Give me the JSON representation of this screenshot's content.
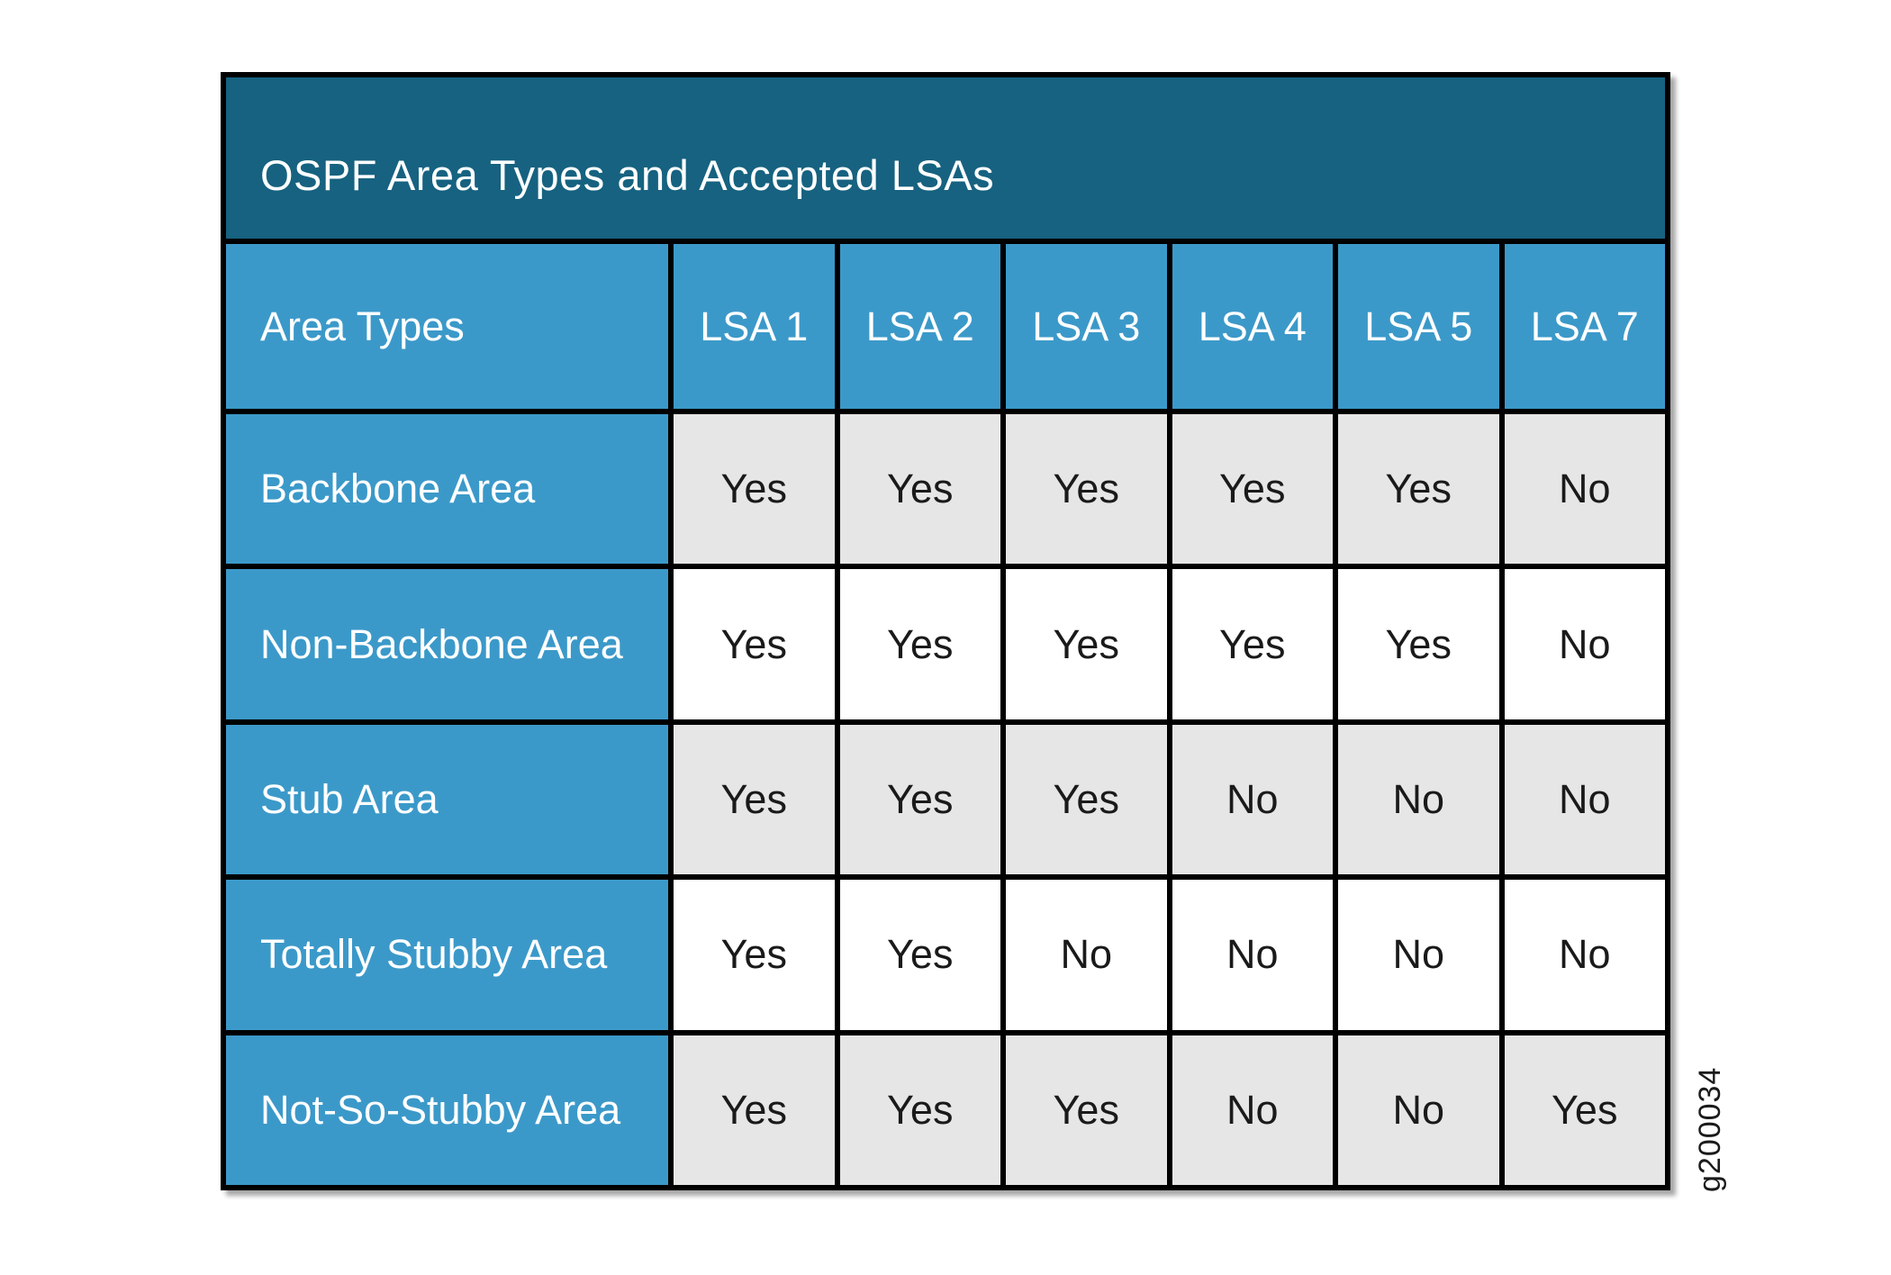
{
  "chart_data": {
    "type": "table",
    "title": "OSPF Area Types and Accepted LSAs",
    "columns": [
      "Area Types",
      "LSA 1",
      "LSA 2",
      "LSA 3",
      "LSA 4",
      "LSA 5",
      "LSA 7"
    ],
    "rows": [
      {
        "label": "Backbone Area",
        "values": [
          "Yes",
          "Yes",
          "Yes",
          "Yes",
          "Yes",
          "No"
        ]
      },
      {
        "label": "Non-Backbone Area",
        "values": [
          "Yes",
          "Yes",
          "Yes",
          "Yes",
          "Yes",
          "No"
        ]
      },
      {
        "label": "Stub Area",
        "values": [
          "Yes",
          "Yes",
          "Yes",
          "No",
          "No",
          "No"
        ]
      },
      {
        "label": "Totally Stubby Area",
        "values": [
          "Yes",
          "Yes",
          "No",
          "No",
          "No",
          "No"
        ]
      },
      {
        "label": "Not-So-Stubby Area",
        "values": [
          "Yes",
          "Yes",
          "Yes",
          "No",
          "No",
          "Yes"
        ]
      }
    ],
    "layout_hints": {
      "striped_rows": "odd data rows gray, even data rows white",
      "header_alignment": "first column left, LSA columns centered",
      "grid": "6px black rules between all cells"
    }
  },
  "figure": {
    "id_label": "g200034"
  },
  "colors": {
    "title_bg": "#166280",
    "header_bg": "#3B99C9",
    "stripe_bg": "#E6E6E6",
    "plain_bg": "#FFFFFF",
    "border": "#000000",
    "header_text": "#FFFFFF",
    "cell_text": "#1A1A1A"
  }
}
